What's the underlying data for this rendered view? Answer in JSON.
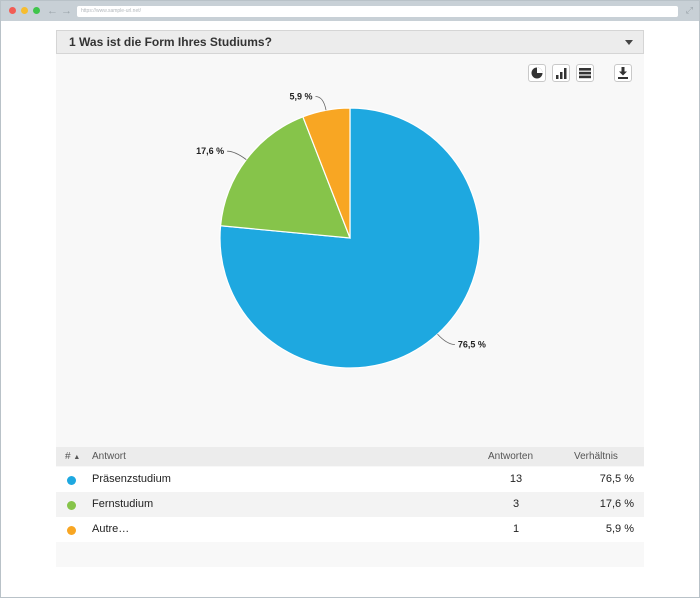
{
  "browser": {
    "url": "https://www.sample-url.net/"
  },
  "question": {
    "title": "1 Was ist die Form Ihres Studiums?"
  },
  "table": {
    "headers": {
      "index": "#",
      "answer": "Antwort",
      "responses": "Antworten",
      "ratio": "Verhältnis"
    },
    "rows": [
      {
        "answer": "Präsenzstudium",
        "count": "13",
        "ratio": "76,5 %",
        "color": "#1ea8e0"
      },
      {
        "answer": "Fernstudium",
        "count": "3",
        "ratio": "17,6 %",
        "color": "#86c44a"
      },
      {
        "answer": "Autre…",
        "count": "1",
        "ratio": "5,9 %",
        "color": "#f8a623"
      }
    ]
  },
  "chart_data": {
    "type": "pie",
    "categories": [
      "Präsenzstudium",
      "Fernstudium",
      "Autre…"
    ],
    "values": [
      76.5,
      17.6,
      5.9
    ],
    "labels": [
      "76,5 %",
      "17,6 %",
      "5,9 %"
    ],
    "colors": [
      "#1ea8e0",
      "#86c44a",
      "#f8a623"
    ],
    "start_angle": "12 o'clock, clockwise"
  },
  "toolbar": {
    "icons": [
      "pie-chart-icon",
      "bar-chart-icon",
      "table-view-icon",
      "download-icon"
    ]
  }
}
